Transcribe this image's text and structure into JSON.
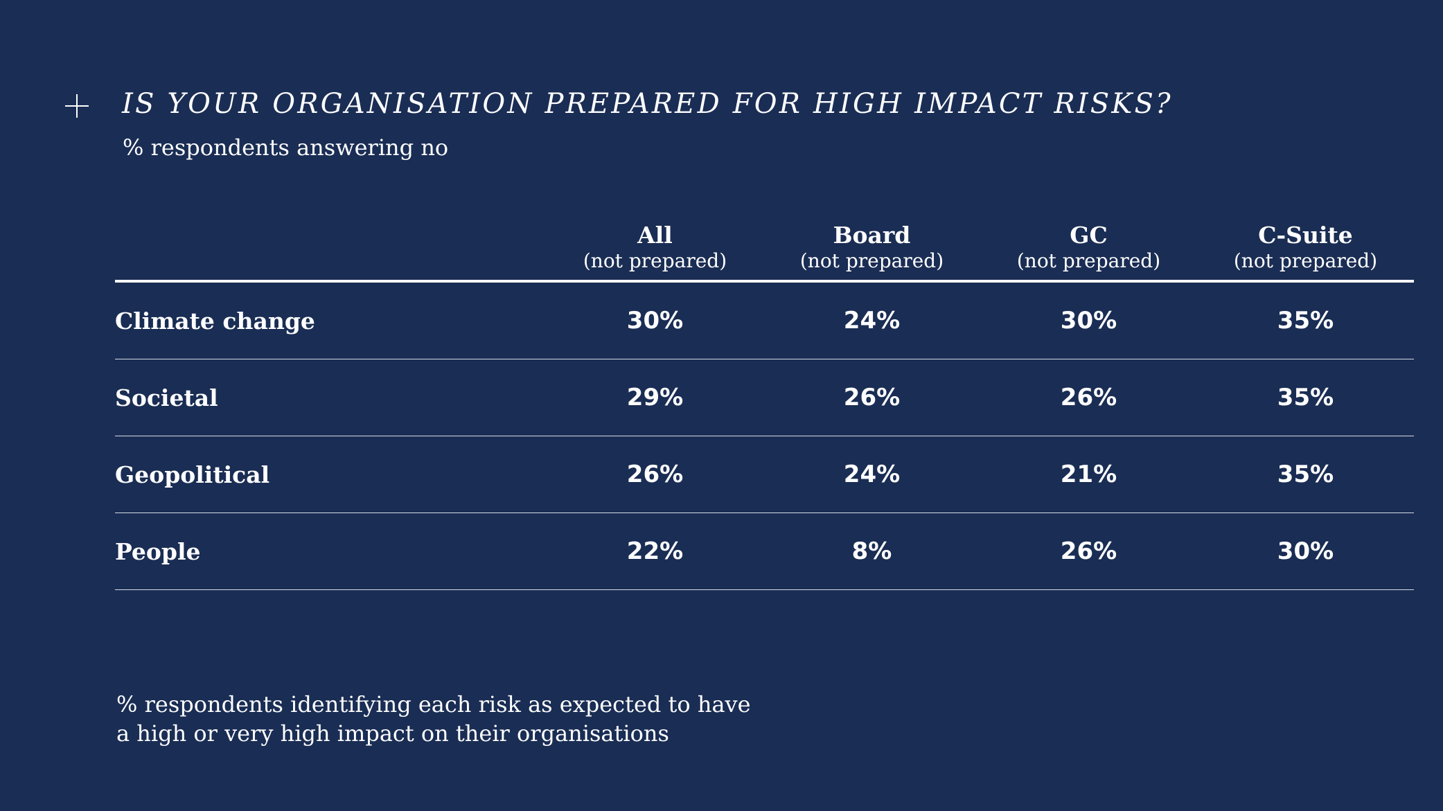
{
  "title": "IS YOUR ORGANISATION PREPARED FOR HIGH IMPACT RISKS?",
  "subtitle": "% respondents answering no",
  "colors": {
    "background": "#1a2d54",
    "text": "#ffffff"
  },
  "icons": {
    "plus": "plus-icon"
  },
  "chart_data": {
    "type": "table",
    "title": "IS YOUR ORGANISATION PREPARED FOR HIGH IMPACT RISKS?",
    "subtitle": "% respondents answering no",
    "columns": [
      {
        "name": "All",
        "sub": "(not prepared)"
      },
      {
        "name": "Board",
        "sub": "(not prepared)"
      },
      {
        "name": "GC",
        "sub": "(not prepared)"
      },
      {
        "name": "C-Suite",
        "sub": "(not prepared)"
      }
    ],
    "rows": [
      {
        "label": "Climate change",
        "values": [
          "30%",
          "24%",
          "30%",
          "35%"
        ]
      },
      {
        "label": "Societal",
        "values": [
          "29%",
          "26%",
          "26%",
          "35%"
        ]
      },
      {
        "label": "Geopolitical",
        "values": [
          "26%",
          "24%",
          "21%",
          "35%"
        ]
      },
      {
        "label": "People",
        "values": [
          "22%",
          "8%",
          "26%",
          "30%"
        ]
      }
    ]
  },
  "footnote": {
    "line1": "% respondents identifying each risk as expected to have",
    "line2": "a high or very high impact on their organisations"
  }
}
